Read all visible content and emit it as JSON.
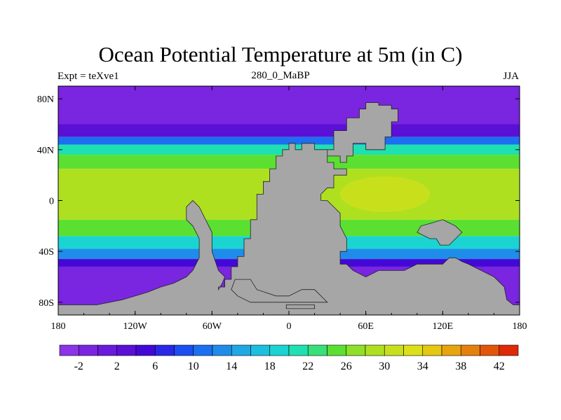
{
  "chart_data": {
    "type": "heatmap",
    "title": "Ocean Potential Temperature at 5m (in C)",
    "subtitle_left": "Expt = teXve1",
    "subtitle_center": "280_0_MaBP",
    "subtitle_right": "JJA",
    "x_range": [
      -180,
      180
    ],
    "y_range": [
      -90,
      90
    ],
    "x_ticks": [
      -180,
      -120,
      -60,
      0,
      60,
      120,
      180
    ],
    "x_tick_labels": [
      "180",
      "120W",
      "60W",
      "0",
      "60E",
      "120E",
      "180"
    ],
    "y_ticks": [
      80,
      40,
      0,
      -40,
      -80
    ],
    "y_tick_labels": [
      "80N",
      "40N",
      "0",
      "40S",
      "80S"
    ],
    "colorbar": {
      "min": -4,
      "max": 44,
      "step": 2,
      "colors": [
        "#8b35e6",
        "#7a25e0",
        "#6a1adb",
        "#5b10d6",
        "#4408d6",
        "#2a28e6",
        "#1b4ff0",
        "#1c6ff0",
        "#1f8cea",
        "#1fa8e4",
        "#1cbfde",
        "#1bd4d2",
        "#1fe0b0",
        "#38e07a",
        "#5be032",
        "#8fe028",
        "#aee020",
        "#c8e01c",
        "#dce016",
        "#e6c812",
        "#e8a40e",
        "#e6800c",
        "#e2560a",
        "#de2a08"
      ],
      "labeled_ticks": [
        -2,
        2,
        6,
        10,
        14,
        18,
        22,
        26,
        30,
        34,
        38,
        42
      ],
      "labels": [
        "-2",
        "2",
        "6",
        "10",
        "14",
        "18",
        "22",
        "26",
        "30",
        "34",
        "38",
        "42"
      ]
    },
    "land_color": "#a6a6a6",
    "temperature_bands": [
      {
        "lat_min": 60,
        "lat_max": 90,
        "value": -1
      },
      {
        "lat_min": 50,
        "lat_max": 60,
        "value": 2
      },
      {
        "lat_min": 44,
        "lat_max": 50,
        "value": 10
      },
      {
        "lat_min": 36,
        "lat_max": 44,
        "value": 20
      },
      {
        "lat_min": 25,
        "lat_max": 36,
        "value": 25
      },
      {
        "lat_min": -15,
        "lat_max": 25,
        "value": 28
      },
      {
        "lat_min": -28,
        "lat_max": -15,
        "value": 24
      },
      {
        "lat_min": -38,
        "lat_max": -28,
        "value": 19
      },
      {
        "lat_min": -46,
        "lat_max": -38,
        "value": 12
      },
      {
        "lat_min": -52,
        "lat_max": -46,
        "value": 4
      },
      {
        "lat_min": -90,
        "lat_max": -52,
        "value": -1
      }
    ],
    "warm_pool": {
      "lon_center": 75,
      "lat_center": 5,
      "lon_radius": 35,
      "lat_radius": 14,
      "value": 31
    },
    "land_polygons": [
      [
        [
          -55,
          -70
        ],
        [
          -55,
          -68
        ],
        [
          -50,
          -68
        ],
        [
          -50,
          -62
        ],
        [
          -45,
          -62
        ],
        [
          -45,
          -52
        ],
        [
          -40,
          -52
        ],
        [
          -40,
          -44
        ],
        [
          -35,
          -44
        ],
        [
          -35,
          -30
        ],
        [
          -30,
          -30
        ],
        [
          -30,
          -15
        ],
        [
          -25,
          -15
        ],
        [
          -25,
          5
        ],
        [
          -20,
          5
        ],
        [
          -20,
          15
        ],
        [
          -15,
          15
        ],
        [
          -15,
          25
        ],
        [
          -10,
          25
        ],
        [
          -10,
          35
        ],
        [
          -5,
          35
        ],
        [
          -5,
          40
        ],
        [
          0,
          40
        ],
        [
          0,
          45
        ],
        [
          5,
          45
        ],
        [
          5,
          40
        ],
        [
          10,
          40
        ],
        [
          10,
          45
        ],
        [
          20,
          45
        ],
        [
          20,
          40
        ],
        [
          30,
          40
        ],
        [
          30,
          35
        ],
        [
          40,
          35
        ],
        [
          40,
          30
        ],
        [
          45,
          30
        ],
        [
          45,
          35
        ],
        [
          50,
          35
        ],
        [
          50,
          45
        ],
        [
          60,
          45
        ],
        [
          60,
          40
        ],
        [
          70,
          40
        ],
        [
          75,
          40
        ],
        [
          75,
          50
        ],
        [
          80,
          50
        ],
        [
          80,
          62
        ],
        [
          85,
          62
        ],
        [
          85,
          72
        ],
        [
          80,
          72
        ],
        [
          80,
          75
        ],
        [
          70,
          75
        ],
        [
          70,
          77
        ],
        [
          60,
          77
        ],
        [
          60,
          72
        ],
        [
          55,
          72
        ],
        [
          55,
          65
        ],
        [
          50,
          65
        ],
        [
          45,
          65
        ],
        [
          45,
          55
        ],
        [
          35,
          55
        ],
        [
          35,
          40
        ],
        [
          30,
          40
        ],
        [
          30,
          30
        ],
        [
          35,
          30
        ],
        [
          35,
          25
        ],
        [
          45,
          25
        ],
        [
          45,
          20
        ],
        [
          35,
          20
        ],
        [
          35,
          10
        ],
        [
          30,
          10
        ],
        [
          25,
          5
        ],
        [
          25,
          0
        ],
        [
          30,
          0
        ],
        [
          35,
          -5
        ],
        [
          40,
          -10
        ],
        [
          40,
          -20
        ],
        [
          45,
          -30
        ],
        [
          45,
          -40
        ],
        [
          40,
          -40
        ],
        [
          40,
          -50
        ],
        [
          45,
          -50
        ],
        [
          50,
          -55
        ],
        [
          60,
          -60
        ],
        [
          70,
          -55
        ],
        [
          90,
          -55
        ],
        [
          100,
          -50
        ],
        [
          110,
          -50
        ],
        [
          120,
          -50
        ],
        [
          125,
          -45
        ],
        [
          130,
          -45
        ],
        [
          135,
          -48
        ],
        [
          140,
          -50
        ],
        [
          150,
          -55
        ],
        [
          160,
          -60
        ],
        [
          168,
          -68
        ],
        [
          170,
          -78
        ],
        [
          175,
          -82
        ],
        [
          180,
          -82
        ],
        [
          180,
          -90
        ],
        [
          -180,
          -90
        ],
        [
          -180,
          -82
        ],
        [
          -150,
          -82
        ],
        [
          -130,
          -78
        ],
        [
          -120,
          -75
        ],
        [
          -110,
          -72
        ],
        [
          -100,
          -68
        ],
        [
          -90,
          -65
        ],
        [
          -80,
          -60
        ],
        [
          -75,
          -55
        ],
        [
          -70,
          -45
        ],
        [
          -70,
          -30
        ],
        [
          -75,
          -20
        ],
        [
          -80,
          -15
        ],
        [
          -80,
          -5
        ],
        [
          -75,
          0
        ],
        [
          -70,
          -5
        ],
        [
          -65,
          -15
        ],
        [
          -60,
          -25
        ],
        [
          -60,
          -40
        ],
        [
          -55,
          -55
        ],
        [
          -50,
          -60
        ],
        [
          -52,
          -65
        ]
      ],
      [
        [
          -42,
          -62
        ],
        [
          -30,
          -62
        ],
        [
          -25,
          -70
        ],
        [
          -10,
          -75
        ],
        [
          0,
          -75
        ],
        [
          10,
          -70
        ],
        [
          20,
          -70
        ],
        [
          30,
          -80
        ],
        [
          -30,
          -80
        ],
        [
          -40,
          -75
        ],
        [
          -45,
          -70
        ]
      ],
      [
        [
          100,
          -25
        ],
        [
          110,
          -30
        ],
        [
          115,
          -30
        ],
        [
          118,
          -35
        ],
        [
          125,
          -35
        ],
        [
          130,
          -30
        ],
        [
          135,
          -25
        ],
        [
          130,
          -20
        ],
        [
          120,
          -15
        ],
        [
          110,
          -18
        ],
        [
          103,
          -20
        ]
      ],
      [
        [
          -2,
          -85
        ],
        [
          20,
          -85
        ],
        [
          20,
          -82
        ],
        [
          -2,
          -82
        ]
      ]
    ]
  }
}
